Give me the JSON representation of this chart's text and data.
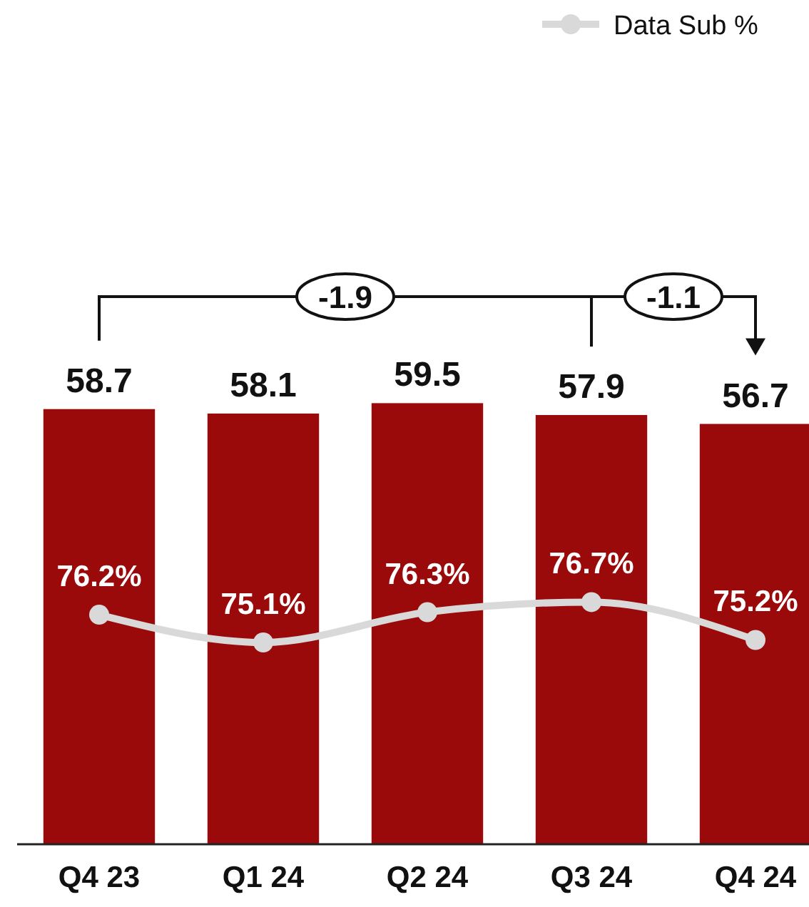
{
  "chart_data": {
    "type": "bar",
    "categories": [
      "Q4 23",
      "Q1 24",
      "Q2 24",
      "Q3 24",
      "Q4 24"
    ],
    "series": [
      {
        "color": "#9b0a0a",
        "values": [
          58.7,
          58.1,
          59.5,
          57.9,
          56.7
        ]
      },
      {
        "type": "line",
        "name": "Data Sub %",
        "color": "#d9d9d9",
        "axis": "y2",
        "values": [
          76.2,
          75.1,
          76.3,
          76.7,
          75.2
        ],
        "value_labels": [
          "76.2%",
          "75.1%",
          "76.3%",
          "76.7%",
          "75.2%"
        ]
      }
    ],
    "tick_labels": "x",
    "data_labels": true,
    "legend": "top right",
    "marker": "circle",
    "line_style": "solid",
    "annotations": [
      "-1.9",
      "-1.1"
    ]
  }
}
